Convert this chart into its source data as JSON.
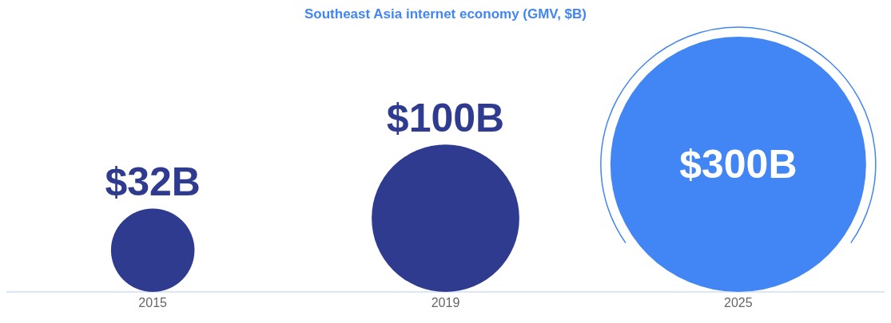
{
  "chart_data": {
    "type": "other",
    "title": "Southeast Asia internet economy (GMV, $B)",
    "categories": [
      "2015",
      "2019",
      "2025"
    ],
    "values": [
      32,
      100,
      300
    ],
    "value_labels": [
      "$32B",
      "$100B",
      "$300B"
    ],
    "colors": [
      "#2e3b8f",
      "#2e3b8f",
      "#4285f4"
    ]
  }
}
